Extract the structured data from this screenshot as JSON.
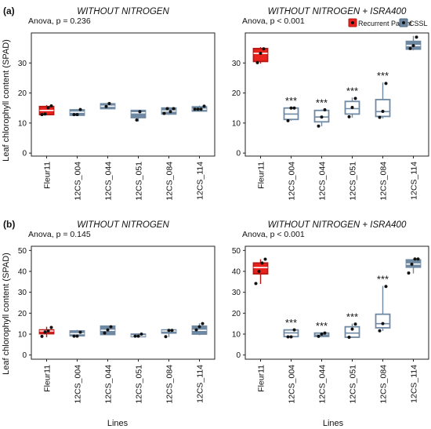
{
  "figure": {
    "ylabel": "Leaf chlorophyll content (SPAD)",
    "xlabel": "Lines",
    "legend": {
      "entries": [
        {
          "label": "Recurrent Parent",
          "color": "#e8221c"
        },
        {
          "label": "CSSL",
          "color": "#6f89a3"
        }
      ],
      "placement": "top-right"
    },
    "colors": {
      "parent_fill": "#e8221c",
      "cssl_fill": "#6f89a3",
      "cssl_light_fill": "#ffffff",
      "box_line": "#6f89a3",
      "parent_line": "#b81814",
      "point": "#111111"
    }
  },
  "chart_data": [
    {
      "panel_label": "(a)",
      "title": "WITHOUT NITROGEN",
      "anova": "Anova, p = 0.236",
      "type": "box",
      "ylim": [
        -1,
        40
      ],
      "yticks": [
        0,
        10,
        20,
        30
      ],
      "categories": [
        "Fleur11",
        "12CS_004",
        "12CS_044",
        "12CS_051",
        "12CS_084",
        "12CS_114"
      ],
      "boxes": [
        {
          "q1": 12.8,
          "median": 14.2,
          "q3": 15.5,
          "min": 12.6,
          "max": 16.0,
          "points": [
            12.8,
            13.0,
            15.1,
            15.7
          ],
          "group": "parent",
          "sig": ""
        },
        {
          "q1": 12.6,
          "median": 13.6,
          "q3": 14.4,
          "min": 12.5,
          "max": 14.6,
          "points": [
            12.8,
            12.8,
            14.5
          ],
          "group": "cssl",
          "sig": ""
        },
        {
          "q1": 14.8,
          "median": 15.6,
          "q3": 16.4,
          "min": 14.8,
          "max": 16.8,
          "points": [
            15.5,
            16.5
          ],
          "group": "cssl",
          "sig": ""
        },
        {
          "q1": 11.8,
          "median": 13.4,
          "q3": 14.2,
          "min": 10.5,
          "max": 14.4,
          "points": [
            11.0,
            13.8
          ],
          "group": "cssl",
          "sig": ""
        },
        {
          "q1": 13.0,
          "median": 14.0,
          "q3": 15.0,
          "min": 12.7,
          "max": 15.3,
          "points": [
            13.2,
            14.8,
            13.8,
            14.8
          ],
          "group": "cssl",
          "sig": ""
        },
        {
          "q1": 14.0,
          "median": 14.6,
          "q3": 15.4,
          "min": 13.8,
          "max": 15.8,
          "points": [
            14.6,
            14.6,
            14.6,
            15.6
          ],
          "group": "cssl",
          "sig": ""
        }
      ]
    },
    {
      "panel_label": "",
      "title": "WITHOUT NITROGEN + ISRA400",
      "anova": "Anova, p < 0.001",
      "type": "box",
      "ylim": [
        -1,
        40
      ],
      "yticks": [
        0,
        10,
        20,
        30
      ],
      "categories": [
        "Fleur11",
        "12CS_004",
        "12CS_044",
        "12CS_051",
        "12CS_084",
        "12CS_114"
      ],
      "boxes": [
        {
          "q1": 30.5,
          "median": 33.2,
          "q3": 34.8,
          "min": 29.8,
          "max": 35.3,
          "points": [
            30.1,
            33.2,
            34.7
          ],
          "group": "parent",
          "sig": ""
        },
        {
          "q1": 11.2,
          "median": 13.0,
          "q3": 15.0,
          "min": 10.8,
          "max": 15.2,
          "points": [
            10.8,
            15.0,
            15.0
          ],
          "group": "cssl_light",
          "sig": "***"
        },
        {
          "q1": 10.4,
          "median": 12.0,
          "q3": 14.2,
          "min": 8.9,
          "max": 14.5,
          "points": [
            9.0,
            12.0,
            14.4
          ],
          "group": "cssl_light",
          "sig": "***"
        },
        {
          "q1": 13.0,
          "median": 14.8,
          "q3": 17.2,
          "min": 11.8,
          "max": 18.5,
          "points": [
            12.1,
            15.2,
            18.2
          ],
          "group": "cssl_light",
          "sig": "***"
        },
        {
          "q1": 12.2,
          "median": 13.8,
          "q3": 17.8,
          "min": 11.5,
          "max": 23.5,
          "points": [
            11.9,
            13.9,
            23.2
          ],
          "group": "cssl_light",
          "sig": "***"
        },
        {
          "q1": 34.6,
          "median": 35.8,
          "q3": 37.2,
          "min": 34.2,
          "max": 39.0,
          "points": [
            34.8,
            35.8,
            38.6
          ],
          "group": "cssl",
          "sig": ""
        }
      ]
    },
    {
      "panel_label": "(b)",
      "title": "WITHOUT NITROGEN",
      "anova": "Anova, p = 0.145",
      "type": "box",
      "ylim": [
        -2,
        52
      ],
      "yticks": [
        0,
        10,
        20,
        30,
        40,
        50
      ],
      "categories": [
        "Fleur11",
        "12CS_004",
        "12CS_044",
        "12CS_051",
        "12CS_084",
        "12CS_114"
      ],
      "boxes": [
        {
          "q1": 10.2,
          "median": 11.5,
          "q3": 12.0,
          "min": 8.5,
          "max": 13.5,
          "points": [
            8.9,
            11.0,
            11.5,
            13.2
          ],
          "group": "parent",
          "sig": ""
        },
        {
          "q1": 9.2,
          "median": 10.2,
          "q3": 11.5,
          "min": 8.7,
          "max": 12.0,
          "points": [
            9.0,
            9.0,
            10.9
          ],
          "group": "cssl",
          "sig": ""
        },
        {
          "q1": 9.8,
          "median": 11.8,
          "q3": 13.8,
          "min": 9.8,
          "max": 14.0,
          "points": [
            10.5,
            12.0,
            13.5
          ],
          "group": "cssl",
          "sig": ""
        },
        {
          "q1": 8.8,
          "median": 9.2,
          "q3": 10.0,
          "min": 8.7,
          "max": 10.4,
          "points": [
            9.0,
            9.0,
            10.0
          ],
          "group": "cssl",
          "sig": ""
        },
        {
          "q1": 10.5,
          "median": 11.5,
          "q3": 12.0,
          "min": 8.5,
          "max": 12.1,
          "points": [
            8.8,
            11.8,
            11.8
          ],
          "group": "cssl",
          "sig": ""
        },
        {
          "q1": 10.0,
          "median": 11.8,
          "q3": 13.8,
          "min": 9.5,
          "max": 15.2,
          "points": [
            12.0,
            13.5,
            15.0
          ],
          "group": "cssl",
          "sig": ""
        }
      ]
    },
    {
      "panel_label": "",
      "title": "WITHOUT NITROGEN + ISRA400",
      "anova": "Anova, p < 0.001",
      "type": "box",
      "ylim": [
        -2,
        52
      ],
      "yticks": [
        0,
        10,
        20,
        30,
        40,
        50
      ],
      "categories": [
        "Fleur11",
        "12CS_004",
        "12CS_044",
        "12CS_051",
        "12CS_084",
        "12CS_114"
      ],
      "boxes": [
        {
          "q1": 38.8,
          "median": 41.8,
          "q3": 44.0,
          "min": 34.0,
          "max": 45.8,
          "points": [
            34.2,
            40.0,
            44.0,
            45.8
          ],
          "group": "parent",
          "sig": ""
        },
        {
          "q1": 8.8,
          "median": 10.6,
          "q3": 12.0,
          "min": 8.5,
          "max": 12.2,
          "points": [
            8.7,
            8.7,
            12.0
          ],
          "group": "cssl_light",
          "sig": "***"
        },
        {
          "q1": 8.9,
          "median": 9.5,
          "q3": 10.5,
          "min": 8.6,
          "max": 10.8,
          "points": [
            8.9,
            10.0,
            10.5
          ],
          "group": "cssl_light",
          "sig": "***"
        },
        {
          "q1": 8.5,
          "median": 10.5,
          "q3": 13.5,
          "min": 8.2,
          "max": 15.0,
          "points": [
            8.5,
            12.4,
            14.8
          ],
          "group": "cssl_light",
          "sig": "***"
        },
        {
          "q1": 13.0,
          "median": 15.0,
          "q3": 19.5,
          "min": 11.5,
          "max": 33.0,
          "points": [
            11.6,
            15.0,
            32.8
          ],
          "group": "cssl_light",
          "sig": "***"
        },
        {
          "q1": 42.0,
          "median": 43.5,
          "q3": 45.5,
          "min": 39.0,
          "max": 46.0,
          "points": [
            39.2,
            43.4,
            45.9,
            45.9
          ],
          "group": "cssl",
          "sig": ""
        }
      ]
    }
  ]
}
